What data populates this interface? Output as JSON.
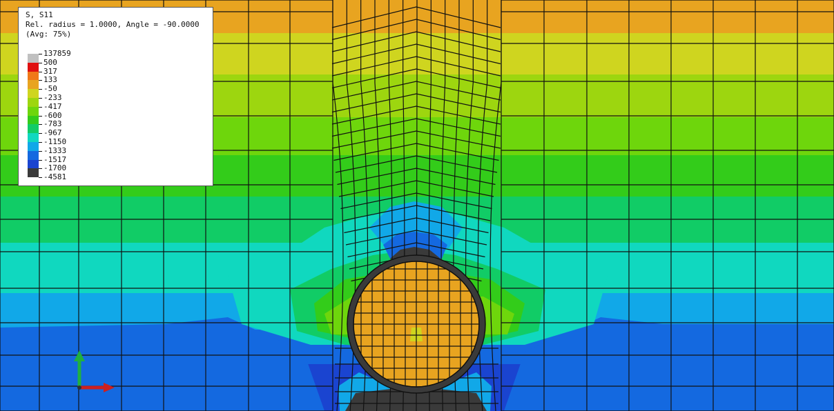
{
  "legend": {
    "variable": "S, S11",
    "info": "Rel. radius = 1.0000, Angle = -90.0000",
    "avg": "(Avg: 75%)",
    "values": [
      "137859",
      "500",
      "317",
      "133",
      "-50",
      "-233",
      "-417",
      "-600",
      "-783",
      "-967",
      "-1150",
      "-1333",
      "-1517",
      "-1700",
      "-4581"
    ],
    "colors": [
      "#c0c0c0",
      "#e01010",
      "#f07818",
      "#e8a420",
      "#cfd51f",
      "#9dd60f",
      "#6ed60c",
      "#33cc1a",
      "#11cc66",
      "#10d8bf",
      "#11a8e8",
      "#1469e0",
      "#1a44d0",
      "#3a3a3a"
    ]
  },
  "contour_colors": {
    "orange": "#e8a420",
    "yellow": "#cfd51f",
    "yellow_green": "#9dd60f",
    "green": "#6ed60c",
    "bright_green": "#33cc1a",
    "sea_green": "#11cc66",
    "cyan": "#10d8bf",
    "light_blue": "#11a8e8",
    "blue": "#1469e0",
    "deep_blue": "#1a44d0",
    "dark": "#3a3a3a",
    "mesh_line": "#111111"
  },
  "triad": {
    "x_color": "#cc2020",
    "y_color": "#20b040"
  }
}
